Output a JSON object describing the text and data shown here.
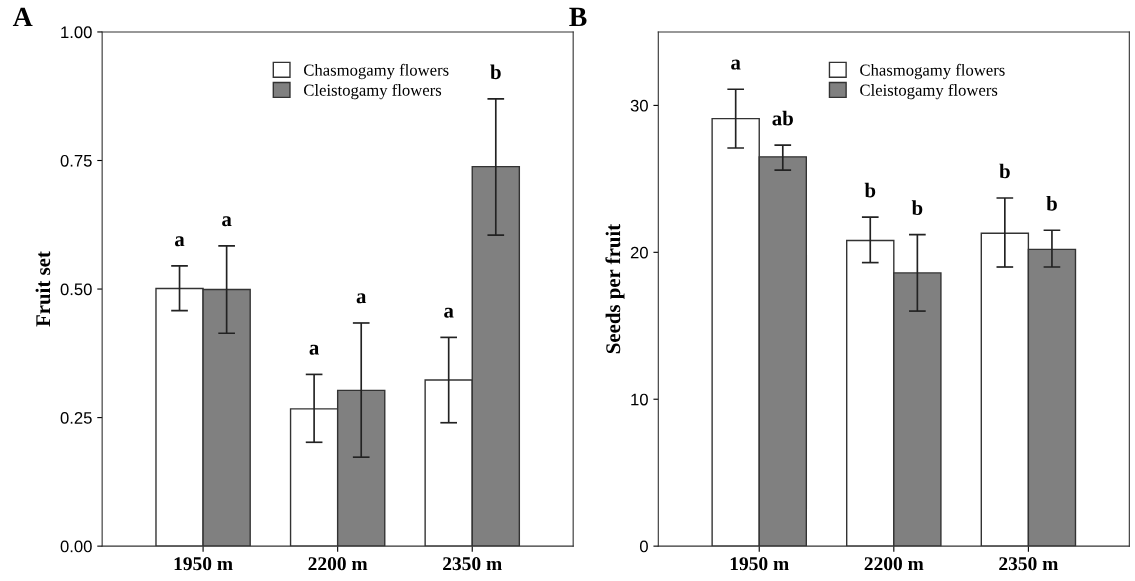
{
  "chart_data": [
    {
      "type": "bar",
      "title": "A",
      "ylabel": "Fruit set",
      "categories": [
        "1950 m",
        "2200 m",
        "2350 m"
      ],
      "series": [
        {
          "name": "Chasmogamy flowers",
          "color": "#ffffff",
          "values": [
            0.501,
            0.267,
            0.323
          ],
          "errors": [
            [
              0.458,
              0.545
            ],
            [
              0.202,
              0.334
            ],
            [
              0.24,
              0.406
            ]
          ]
        },
        {
          "name": "Cleistogamy flowers",
          "color": "#808080",
          "values": [
            0.499,
            0.303,
            0.738
          ],
          "errors": [
            [
              0.414,
              0.584
            ],
            [
              0.173,
              0.434
            ],
            [
              0.605,
              0.87
            ]
          ]
        }
      ],
      "annotations": [
        "a",
        "a",
        "a",
        "a",
        "a",
        "b"
      ],
      "ylim": [
        0,
        1
      ],
      "yticks": [
        {
          "value": 0,
          "label": "0.00"
        },
        {
          "value": 0.25,
          "label": "0.25"
        },
        {
          "value": 0.5,
          "label": "0.50"
        },
        {
          "value": 0.75,
          "label": "0.75"
        },
        {
          "value": 1,
          "label": "1.00"
        }
      ],
      "grid": false,
      "legend": "top"
    },
    {
      "type": "bar",
      "title": "B",
      "ylabel": "Seeds per fruit",
      "categories": [
        "1950 m",
        "2200 m",
        "2350 m"
      ],
      "series": [
        {
          "name": "Chasmogamy flowers",
          "color": "#ffffff",
          "values": [
            29.1,
            20.8,
            21.3
          ],
          "errors": [
            [
              27.1,
              31.1
            ],
            [
              19.3,
              22.4
            ],
            [
              19.0,
              23.7
            ]
          ]
        },
        {
          "name": "Cleistogamy flowers",
          "color": "#808080",
          "values": [
            26.5,
            18.6,
            20.2
          ],
          "errors": [
            [
              25.6,
              27.3
            ],
            [
              16.0,
              21.2
            ],
            [
              19.0,
              21.5
            ]
          ]
        }
      ],
      "annotations": [
        "a",
        "b",
        "b",
        "ab",
        "b",
        "b"
      ],
      "ylim": [
        0,
        35
      ],
      "yticks": [
        0,
        10,
        20,
        30
      ],
      "grid": false,
      "legend": "top"
    }
  ]
}
